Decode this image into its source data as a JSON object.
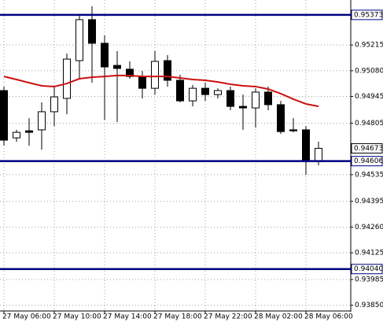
{
  "chart_data": {
    "type": "candlestick",
    "categories": [
      "27 May 06:00",
      null,
      null,
      null,
      "27 May 10:00",
      null,
      null,
      null,
      "27 May 14:00",
      null,
      null,
      null,
      "27 May 18:00",
      null,
      null,
      null,
      "27 May 22:00",
      null,
      null,
      null,
      "28 May 02:00",
      null,
      null,
      null,
      "28 May 06:00",
      null
    ],
    "open": [
      0.94976,
      0.94728,
      0.94765,
      0.9477,
      0.94865,
      0.94935,
      0.95133,
      0.95348,
      0.95224,
      0.95108,
      0.95088,
      0.9505,
      0.94988,
      0.95133,
      0.9503,
      0.94922,
      0.94988,
      0.94955,
      0.94976,
      0.94893,
      0.94885,
      0.94968,
      0.94902,
      0.9477,
      0.9477,
      0.94604
    ],
    "high": [
      0.94997,
      0.9477,
      0.94831,
      0.94914,
      0.94997,
      0.9517,
      0.95368,
      0.95418,
      0.95265,
      0.95183,
      0.95129,
      0.95079,
      0.95183,
      0.95162,
      0.95059,
      0.95005,
      0.95017,
      0.94988,
      0.94997,
      0.94955,
      0.94988,
      0.94997,
      0.94922,
      0.94831,
      0.9479,
      0.94708
    ],
    "low": [
      0.94687,
      0.94708,
      0.94687,
      0.94666,
      0.9479,
      0.94852,
      0.95038,
      0.95017,
      0.94823,
      0.94811,
      0.95038,
      0.94935,
      0.94955,
      0.94997,
      0.94914,
      0.94893,
      0.94922,
      0.94935,
      0.94873,
      0.9477,
      0.94782,
      0.94873,
      0.94749,
      0.94757,
      0.94534,
      0.94584
    ],
    "close": [
      0.94716,
      0.94757,
      0.94757,
      0.94865,
      0.94943,
      0.95141,
      0.95348,
      0.95224,
      0.951,
      0.95092,
      0.9505,
      0.94988,
      0.95129,
      0.9503,
      0.94922,
      0.94988,
      0.94955,
      0.94976,
      0.94893,
      0.94885,
      0.94968,
      0.94902,
      0.94761,
      0.94765,
      0.94604,
      0.94673
    ],
    "up_color": "#ffffff",
    "down_color": "#000000",
    "moving_average": {
      "color": "#cc1111",
      "values": [
        0.9505,
        0.95034,
        0.95017,
        0.95001,
        0.94997,
        0.95013,
        0.95038,
        0.95046,
        0.9505,
        0.95055,
        0.95055,
        0.9505,
        0.9505,
        0.9505,
        0.95042,
        0.95034,
        0.9503,
        0.95021,
        0.95009,
        0.95001,
        0.94997,
        0.94984,
        0.9496,
        0.94931,
        0.94906,
        0.94893
      ]
    },
    "levels": [
      0.95373,
      0.94606,
      {
        "value": 0.9404,
        "label": "0.94040"
      }
    ],
    "level_color": "#000080",
    "current_price": 0.94673,
    "ylim": [
      0.9382,
      0.95451
    ],
    "yticks": [
      0.95215,
      {
        "value": 0.9508,
        "label": "0.95080"
      },
      0.94945,
      0.94805,
      0.94535,
      0.94395,
      {
        "value": 0.9426,
        "label": "0.94260"
      },
      0.94125,
      0.93985,
      {
        "value": 0.9385,
        "label": "0.93850"
      }
    ],
    "grid": true
  }
}
